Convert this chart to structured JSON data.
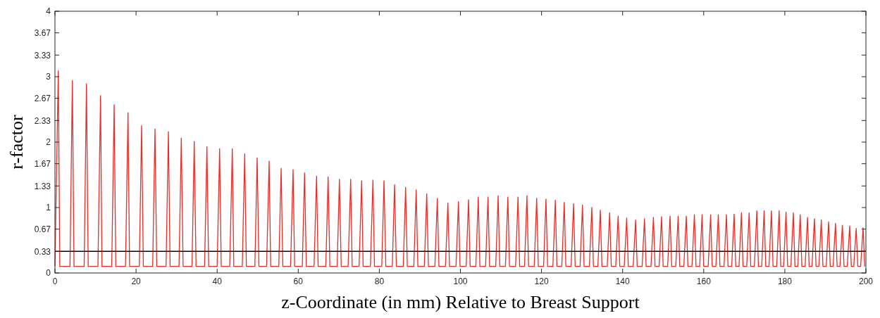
{
  "chart_data": {
    "type": "line",
    "xlabel": "z-Coordinate (in mm) Relative to Breast Support",
    "ylabel": "r-factor",
    "xlim": [
      0,
      200
    ],
    "xticks": [
      0,
      20,
      40,
      60,
      80,
      100,
      120,
      140,
      160,
      180,
      200
    ],
    "ylim": [
      0,
      4
    ],
    "yticks": [
      0,
      0.33,
      0.67,
      1,
      1.33,
      1.67,
      2,
      2.33,
      2.67,
      3,
      3.33,
      3.67,
      4
    ],
    "grid": false,
    "marker": "none",
    "line_style": "solid",
    "ref_lines": [
      {
        "axis": "y",
        "value": 0.33,
        "color": "#000000"
      }
    ],
    "series": [
      {
        "color": "#ee2a24",
        "x": [
          0,
          0.82,
          1.2,
          3.7,
          4.29,
          4.7,
          7.2,
          7.77,
          8.2,
          10.6,
          11.24,
          11.6,
          14.0,
          14.6,
          15.0,
          17.4,
          18.02,
          18.4,
          20.8,
          21.37,
          21.8,
          24.1,
          24.67,
          25.1,
          27.4,
          27.98,
          28.4,
          30.6,
          31.16,
          31.6,
          33.8,
          34.35,
          34.8,
          36.9,
          37.48,
          37.9,
          40.0,
          40.61,
          41.0,
          43.1,
          43.74,
          44.1,
          46.2,
          46.8,
          47.2,
          49.3,
          49.87,
          50.3,
          52.2,
          52.82,
          53.2,
          55.2,
          55.78,
          56.2,
          58.1,
          58.73,
          59.1,
          61.0,
          61.56,
          62.0,
          63.9,
          64.52,
          64.9,
          66.8,
          67.37,
          67.8,
          69.6,
          70.15,
          70.6,
          72.3,
          72.93,
          73.3,
          75.0,
          75.64,
          76.0,
          77.8,
          78.42,
          78.8,
          80.6,
          81.15,
          81.6,
          83.2,
          83.75,
          84.2,
          85.9,
          86.48,
          86.9,
          88.5,
          89.09,
          89.5,
          91.1,
          91.69,
          92.1,
          93.7,
          94.3,
          94.7,
          96.3,
          96.91,
          97.3,
          98.9,
          99.51,
          99.9,
          101.4,
          102.0,
          102.4,
          103.8,
          104.4,
          104.8,
          106.2,
          106.8,
          107.2,
          108.7,
          109.3,
          109.7,
          111.1,
          111.7,
          112.1,
          113.6,
          114.2,
          114.6,
          115.8,
          116.4,
          116.8,
          118.2,
          118.8,
          119.2,
          120.5,
          121.1,
          121.5,
          122.8,
          123.4,
          123.8,
          125.0,
          125.6,
          126.0,
          127.3,
          127.9,
          128.3,
          129.5,
          130.1,
          130.5,
          131.8,
          132.4,
          132.8,
          133.9,
          134.5,
          134.9,
          136.2,
          136.8,
          137.2,
          138.3,
          138.9,
          139.3,
          140.4,
          141.0,
          141.4,
          142.6,
          143.2,
          143.6,
          144.8,
          145.4,
          145.8,
          147.0,
          147.6,
          148.0,
          149.0,
          149.6,
          150.0,
          151.1,
          151.7,
          152.1,
          153.1,
          153.7,
          154.1,
          155.1,
          155.7,
          156.1,
          157.1,
          157.7,
          158.1,
          159.0,
          159.6,
          160.0,
          161.1,
          161.7,
          162.1,
          163.0,
          163.6,
          164.0,
          165.0,
          165.6,
          166.0,
          166.9,
          167.5,
          167.9,
          168.7,
          169.3,
          169.7,
          170.6,
          171.2,
          171.6,
          172.5,
          173.1,
          173.5,
          174.3,
          174.9,
          175.3,
          176.1,
          176.7,
          177.1,
          178.0,
          178.6,
          179.0,
          179.7,
          180.3,
          180.7,
          181.5,
          182.1,
          182.5,
          183.2,
          183.8,
          184.2,
          185.0,
          185.6,
          186.0,
          186.7,
          187.3,
          187.7,
          188.4,
          189.0,
          189.4,
          190.2,
          190.8,
          191.2,
          191.9,
          192.5,
          192.9,
          193.6,
          194.2,
          194.6,
          195.4,
          196.0,
          196.4,
          197.0,
          197.6,
          198.0,
          198.7,
          199.3,
          199.7
        ],
        "values": [
          0.1,
          3.09,
          0.1,
          0.1,
          2.94,
          0.1,
          0.1,
          2.89,
          0.1,
          0.1,
          2.71,
          0.1,
          0.1,
          2.57,
          0.1,
          0.1,
          2.45,
          0.1,
          0.1,
          2.25,
          0.1,
          0.1,
          2.2,
          0.1,
          0.1,
          2.16,
          0.1,
          0.1,
          2.06,
          0.1,
          0.1,
          2.01,
          0.1,
          0.1,
          1.93,
          0.1,
          0.1,
          1.9,
          0.1,
          0.1,
          1.9,
          0.1,
          0.1,
          1.82,
          0.1,
          0.1,
          1.76,
          0.1,
          0.1,
          1.71,
          0.1,
          0.1,
          1.6,
          0.1,
          0.1,
          1.58,
          0.1,
          0.1,
          1.53,
          0.1,
          0.1,
          1.48,
          0.1,
          0.1,
          1.47,
          0.1,
          0.1,
          1.43,
          0.1,
          0.1,
          1.43,
          0.1,
          0.1,
          1.41,
          0.1,
          0.1,
          1.42,
          0.1,
          0.1,
          1.41,
          0.1,
          0.1,
          1.35,
          0.1,
          0.1,
          1.31,
          0.1,
          0.1,
          1.27,
          0.1,
          0.1,
          1.21,
          0.1,
          0.1,
          1.14,
          0.1,
          0.1,
          1.07,
          0.1,
          0.1,
          1.09,
          0.1,
          0.1,
          1.12,
          0.1,
          0.1,
          1.16,
          0.1,
          0.1,
          1.16,
          0.1,
          0.1,
          1.18,
          0.1,
          0.1,
          1.16,
          0.1,
          0.1,
          1.16,
          0.1,
          0.1,
          1.18,
          0.1,
          0.1,
          1.14,
          0.1,
          0.1,
          1.13,
          0.1,
          0.1,
          1.11,
          0.1,
          0.1,
          1.08,
          0.1,
          0.1,
          1.06,
          0.1,
          0.1,
          1.04,
          0.1,
          0.1,
          1.0,
          0.1,
          0.1,
          0.96,
          0.1,
          0.1,
          0.92,
          0.1,
          0.1,
          0.87,
          0.1,
          0.1,
          0.84,
          0.1,
          0.1,
          0.81,
          0.1,
          0.1,
          0.83,
          0.1,
          0.1,
          0.85,
          0.1,
          0.1,
          0.86,
          0.1,
          0.1,
          0.87,
          0.1,
          0.1,
          0.87,
          0.1,
          0.1,
          0.87,
          0.1,
          0.1,
          0.89,
          0.1,
          0.1,
          0.89,
          0.1,
          0.1,
          0.89,
          0.1,
          0.1,
          0.89,
          0.1,
          0.1,
          0.89,
          0.1,
          0.1,
          0.9,
          0.1,
          0.1,
          0.92,
          0.1,
          0.1,
          0.92,
          0.1,
          0.1,
          0.95,
          0.1,
          0.1,
          0.95,
          0.1,
          0.1,
          0.95,
          0.1,
          0.1,
          0.95,
          0.1,
          0.1,
          0.93,
          0.1,
          0.1,
          0.92,
          0.1,
          0.1,
          0.89,
          0.1,
          0.1,
          0.85,
          0.1,
          0.1,
          0.83,
          0.1,
          0.1,
          0.81,
          0.1,
          0.1,
          0.78,
          0.1,
          0.1,
          0.76,
          0.1,
          0.1,
          0.73,
          0.1,
          0.1,
          0.72,
          0.1,
          0.1,
          0.68,
          0.1,
          0.1,
          0.69,
          0.1
        ]
      }
    ]
  }
}
